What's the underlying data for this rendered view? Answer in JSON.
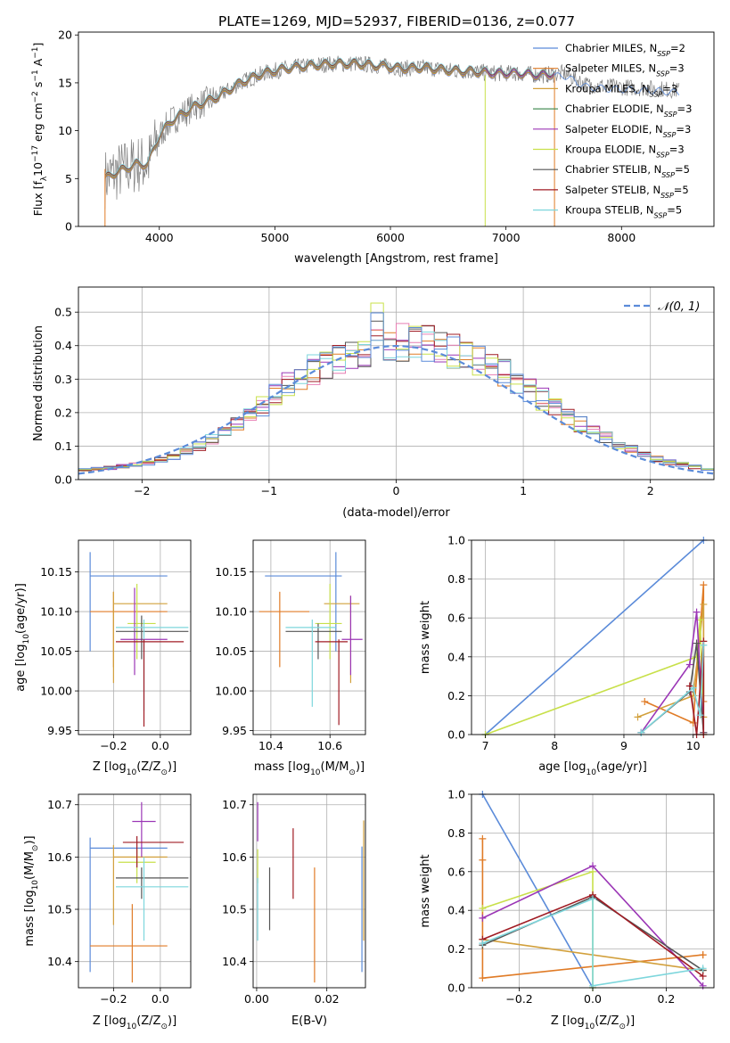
{
  "figure": {
    "title": "PLATE=1269, MJD=52937, FIBERID=0136, z=0.077"
  },
  "colors": {
    "series": [
      "#5b8bd9",
      "#e07b26",
      "#d2a03c",
      "#4a8f5a",
      "#9b36b6",
      "#c8e04a",
      "#555555",
      "#a01c24",
      "#7dd6dc"
    ],
    "resid_series": [
      "#e07b26",
      "#9b36b6",
      "#e77fb4",
      "#555555",
      "#a01c24",
      "#7dd6dc",
      "#c8e04a",
      "#5b8bd9"
    ],
    "normal": "#5b8bd9",
    "grid": "#b0b0b0"
  },
  "chart_data": [
    {
      "id": "spectrum",
      "type": "line",
      "xlabel": "wavelength [Angstrom, rest frame]",
      "ylabel": "Flux [f",
      "ylabel_parts": [
        "Flux [f",
        "λ",
        "10",
        "−17",
        " erg cm",
        "−2",
        " s",
        "−1",
        " A",
        "−1",
        "]"
      ],
      "xlim": [
        3300,
        8800
      ],
      "ylim": [
        0,
        20.3
      ],
      "xticks": [
        4000,
        5000,
        6000,
        7000,
        8000
      ],
      "yticks": [
        0,
        5,
        10,
        15,
        20
      ],
      "grid": false,
      "legend_position": "top-right",
      "series": [
        {
          "name": "Chabrier MILES",
          "sub": "SSP",
          "n": "2"
        },
        {
          "name": "Salpeter MILES",
          "sub": "SSP",
          "n": "3"
        },
        {
          "name": "Kroupa MILES",
          "sub": "SSP",
          "n": "3"
        },
        {
          "name": "Chabrier ELODIE",
          "sub": "SSP",
          "n": "3"
        },
        {
          "name": "Salpeter ELODIE",
          "sub": "SSP",
          "n": "3"
        },
        {
          "name": "Kroupa ELODIE",
          "sub": "SSP",
          "n": "3"
        },
        {
          "name": "Chabrier STELIB",
          "sub": "SSP",
          "n": "5"
        },
        {
          "name": "Salpeter STELIB",
          "sub": "SSP",
          "n": "5"
        },
        {
          "name": "Kroupa STELIB",
          "sub": "SSP",
          "n": "5"
        }
      ],
      "continuum_x": [
        3530,
        3600,
        3700,
        3800,
        3900,
        3950,
        4000,
        4100,
        4300,
        4500,
        4700,
        4900,
        5100,
        5300,
        5500,
        5700,
        5900,
        6100,
        6300,
        6500,
        6700,
        6900,
        7100,
        7300,
        7500,
        7700,
        7900,
        8100,
        8300,
        8500
      ],
      "continuum_y": [
        5,
        5.5,
        6,
        6.5,
        6.5,
        8,
        9.5,
        11,
        12.5,
        13.5,
        15,
        16,
        16.5,
        16.8,
        17,
        17,
        16.8,
        16.5,
        16.6,
        16.3,
        16.2,
        16,
        16,
        15.8,
        16,
        14.8,
        14.6,
        14.5,
        14.4,
        14.2
      ]
    },
    {
      "id": "residuals",
      "type": "step",
      "xlabel": "(data-model)/error",
      "ylabel": "Normed distribution",
      "xlim": [
        -2.5,
        2.5
      ],
      "ylim": [
        0,
        0.575
      ],
      "xticks": [
        -2,
        -1,
        0,
        1,
        2
      ],
      "xticklabels": [
        "−2",
        "−1",
        "0",
        "1",
        "2"
      ],
      "yticks": [
        0,
        0.1,
        0.2,
        0.3,
        0.4,
        0.5
      ],
      "yticklabels": [
        "0.0",
        "0.1",
        "0.2",
        "0.3",
        "0.4",
        "0.5"
      ],
      "grid": true,
      "legend_position": "top-right",
      "legend": "𝒩(0, 1)",
      "bin_edges": [
        -2.5,
        -2.4,
        -2.3,
        -2.2,
        -2.1,
        -2.0,
        -1.9,
        -1.8,
        -1.7,
        -1.6,
        -1.5,
        -1.4,
        -1.3,
        -1.2,
        -1.1,
        -1.0,
        -0.9,
        -0.8,
        -0.7,
        -0.6,
        -0.5,
        -0.4,
        -0.3,
        -0.2,
        -0.1,
        0.0,
        0.1,
        0.2,
        0.3,
        0.4,
        0.5,
        0.6,
        0.7,
        0.8,
        0.9,
        1.0,
        1.1,
        1.2,
        1.3,
        1.4,
        1.5,
        1.6,
        1.7,
        1.8,
        1.9,
        2.0,
        2.1,
        2.2,
        2.3,
        2.4,
        2.5
      ],
      "base_hist": [
        0.03,
        0.032,
        0.035,
        0.04,
        0.045,
        0.05,
        0.06,
        0.07,
        0.085,
        0.1,
        0.12,
        0.14,
        0.165,
        0.19,
        0.22,
        0.25,
        0.28,
        0.305,
        0.33,
        0.35,
        0.365,
        0.38,
        0.39,
        0.4,
        0.405,
        0.41,
        0.41,
        0.405,
        0.395,
        0.385,
        0.37,
        0.355,
        0.335,
        0.315,
        0.29,
        0.265,
        0.24,
        0.215,
        0.19,
        0.165,
        0.145,
        0.125,
        0.105,
        0.09,
        0.075,
        0.062,
        0.052,
        0.045,
        0.038,
        0.032
      ]
    },
    {
      "id": "age_vs_z",
      "type": "errorbar",
      "xlabel": "Z [log",
      "xlabel_parts": [
        "Z [log",
        "10",
        "(Z/Z",
        "⊙",
        ")]"
      ],
      "ylabel_parts": [
        "age  [log",
        "10",
        "(age/yr)]"
      ],
      "xlim": [
        -0.35,
        0.13
      ],
      "ylim": [
        9.945,
        10.19
      ],
      "xticks": [
        -0.2,
        0.0
      ],
      "xticklabels": [
        "−0.2",
        "0.0"
      ],
      "yticks": [
        9.95,
        10.0,
        10.05,
        10.1,
        10.15
      ],
      "yticklabels": [
        "9.95",
        "10.00",
        "10.05",
        "10.10",
        "10.15"
      ],
      "grid": true,
      "points": [
        {
          "x": -0.3,
          "y": 10.145,
          "xlo": -0.3,
          "xhi": 0.03,
          "ylo": 10.05,
          "yhi": 10.175,
          "c": 0
        },
        {
          "x": -0.2,
          "y": 10.1,
          "xlo": -0.3,
          "xhi": 0.03,
          "ylo": 10.03,
          "yhi": 10.125,
          "c": 1
        },
        {
          "x": -0.2,
          "y": 10.11,
          "xlo": -0.2,
          "xhi": 0.03,
          "ylo": 10.01,
          "yhi": 10.125,
          "c": 2
        },
        {
          "x": -0.1,
          "y": 10.085,
          "xlo": -0.14,
          "xhi": -0.02,
          "ylo": 10.04,
          "yhi": 10.135,
          "c": 5
        },
        {
          "x": -0.11,
          "y": 10.065,
          "xlo": -0.17,
          "xhi": 0.03,
          "ylo": 10.02,
          "yhi": 10.13,
          "c": 4
        },
        {
          "x": -0.08,
          "y": 10.075,
          "xlo": -0.19,
          "xhi": 0.12,
          "ylo": 10.04,
          "yhi": 10.095,
          "c": 6
        },
        {
          "x": -0.07,
          "y": 10.08,
          "xlo": -0.19,
          "xhi": 0.12,
          "ylo": 9.975,
          "yhi": 10.09,
          "c": 8
        },
        {
          "x": -0.07,
          "y": 10.062,
          "xlo": -0.19,
          "xhi": 0.1,
          "ylo": 9.955,
          "yhi": 10.065,
          "c": 7
        }
      ]
    },
    {
      "id": "age_vs_mass",
      "type": "errorbar",
      "xlabel_parts": [
        "mass [log",
        "10",
        "(M/M",
        "⊙",
        ")]"
      ],
      "xlim": [
        10.34,
        10.72
      ],
      "ylim": [
        9.945,
        10.19
      ],
      "xticks": [
        10.4,
        10.6
      ],
      "xticklabels": [
        "10.4",
        "10.6"
      ],
      "yticks": [
        9.95,
        10.0,
        10.05,
        10.1,
        10.15
      ],
      "yticklabels": [
        "9.95",
        "10.00",
        "10.05",
        "10.10",
        "10.15"
      ],
      "grid": true,
      "points": [
        {
          "x": 10.62,
          "y": 10.145,
          "xlo": 10.38,
          "xhi": 10.64,
          "ylo": 10.05,
          "yhi": 10.175,
          "c": 0
        },
        {
          "x": 10.43,
          "y": 10.1,
          "xlo": 10.36,
          "xhi": 10.53,
          "ylo": 10.03,
          "yhi": 10.125,
          "c": 1
        },
        {
          "x": 10.67,
          "y": 10.11,
          "xlo": 10.58,
          "xhi": 10.7,
          "ylo": 10.01,
          "yhi": 10.12,
          "c": 2
        },
        {
          "x": 10.6,
          "y": 10.085,
          "xlo": 10.55,
          "xhi": 10.64,
          "ylo": 10.04,
          "yhi": 10.135,
          "c": 5
        },
        {
          "x": 10.67,
          "y": 10.065,
          "xlo": 10.64,
          "xhi": 10.71,
          "ylo": 10.02,
          "yhi": 10.12,
          "c": 4
        },
        {
          "x": 10.56,
          "y": 10.075,
          "xlo": 10.45,
          "xhi": 10.64,
          "ylo": 10.04,
          "yhi": 10.085,
          "c": 6
        },
        {
          "x": 10.54,
          "y": 10.08,
          "xlo": 10.45,
          "xhi": 10.62,
          "ylo": 9.98,
          "yhi": 10.09,
          "c": 8
        },
        {
          "x": 10.63,
          "y": 10.062,
          "xlo": 10.55,
          "xhi": 10.66,
          "ylo": 9.957,
          "yhi": 10.065,
          "c": 7
        }
      ]
    },
    {
      "id": "massweight_vs_age",
      "type": "line",
      "xlabel_parts": [
        "age  [log",
        "10",
        "(age/yr)]"
      ],
      "ylabel": "mass weight",
      "xlim": [
        6.8,
        10.3
      ],
      "ylim": [
        0,
        1.0
      ],
      "xticks": [
        7,
        8,
        9,
        10
      ],
      "xticklabels": [
        "7",
        "8",
        "9",
        "10"
      ],
      "yticks": [
        0,
        0.2,
        0.4,
        0.6,
        0.8,
        1.0
      ],
      "yticklabels": [
        "0.0",
        "0.2",
        "0.4",
        "0.6",
        "0.8",
        "1.0"
      ],
      "grid": true,
      "series": [
        {
          "c": 0,
          "x": [
            7.0,
            10.15
          ],
          "y": [
            0.0,
            1.0
          ]
        },
        {
          "c": 1,
          "x": [
            9.3,
            10.0,
            10.15,
            10.15
          ],
          "y": [
            0.17,
            0.06,
            0.77,
            0.17
          ]
        },
        {
          "c": 2,
          "x": [
            9.2,
            10.0,
            10.15,
            10.15
          ],
          "y": [
            0.09,
            0.2,
            0.67,
            0.09
          ]
        },
        {
          "c": 5,
          "x": [
            7.0,
            10.05,
            10.1,
            10.15
          ],
          "y": [
            0.0,
            0.4,
            0.59,
            0.0
          ]
        },
        {
          "c": 4,
          "x": [
            9.25,
            9.95,
            10.05,
            10.15
          ],
          "y": [
            0.01,
            0.36,
            0.63,
            0.01
          ]
        },
        {
          "c": 6,
          "x": [
            9.25,
            9.95,
            10.05,
            10.15
          ],
          "y": [
            0.01,
            0.22,
            0.47,
            0.01
          ]
        },
        {
          "c": 7,
          "x": [
            9.95,
            10.05,
            10.15,
            10.15
          ],
          "y": [
            0.25,
            0.0,
            0.48,
            0.0
          ]
        },
        {
          "c": 8,
          "x": [
            9.25,
            10.0,
            10.1,
            10.15
          ],
          "y": [
            0.01,
            0.24,
            0.1,
            0.46
          ]
        }
      ]
    },
    {
      "id": "mass_vs_z",
      "type": "errorbar",
      "xlabel_parts": [
        "Z [log",
        "10",
        "(Z/Z",
        "⊙",
        ")]"
      ],
      "ylabel_parts": [
        "mass [log",
        "10",
        "(M/M",
        "⊙",
        ")]"
      ],
      "xlim": [
        -0.35,
        0.13
      ],
      "ylim": [
        10.35,
        10.72
      ],
      "xticks": [
        -0.2,
        0.0
      ],
      "xticklabels": [
        "−0.2",
        "0.0"
      ],
      "yticks": [
        10.4,
        10.5,
        10.6,
        10.7
      ],
      "yticklabels": [
        "10.4",
        "10.5",
        "10.6",
        "10.7"
      ],
      "grid": true,
      "points": [
        {
          "x": -0.3,
          "y": 10.617,
          "xlo": -0.3,
          "xhi": 0.03,
          "ylo": 10.38,
          "yhi": 10.637,
          "c": 0
        },
        {
          "x": -0.12,
          "y": 10.43,
          "xlo": -0.3,
          "xhi": 0.03,
          "ylo": 10.36,
          "yhi": 10.51,
          "c": 1
        },
        {
          "x": -0.2,
          "y": 10.6,
          "xlo": -0.2,
          "xhi": 0.03,
          "ylo": 10.47,
          "yhi": 10.623,
          "c": 2
        },
        {
          "x": -0.08,
          "y": 10.668,
          "xlo": -0.12,
          "xhi": -0.02,
          "ylo": 10.6,
          "yhi": 10.705,
          "c": 4
        },
        {
          "x": -0.1,
          "y": 10.59,
          "xlo": -0.18,
          "xhi": -0.02,
          "ylo": 10.55,
          "yhi": 10.615,
          "c": 5
        },
        {
          "x": -0.08,
          "y": 10.56,
          "xlo": -0.19,
          "xhi": 0.12,
          "ylo": 10.52,
          "yhi": 10.58,
          "c": 6
        },
        {
          "x": -0.07,
          "y": 10.543,
          "xlo": -0.19,
          "xhi": 0.12,
          "ylo": 10.44,
          "yhi": 10.6,
          "c": 8
        },
        {
          "x": -0.1,
          "y": 10.628,
          "xlo": -0.16,
          "xhi": 0.1,
          "ylo": 10.58,
          "yhi": 10.64,
          "c": 7
        }
      ]
    },
    {
      "id": "mass_vs_ebv",
      "type": "errorbar",
      "xlabel": "E(B-V)",
      "xlim": [
        -0.001,
        0.031
      ],
      "ylim": [
        10.35,
        10.72
      ],
      "xticks": [
        0.0,
        0.02
      ],
      "xticklabels": [
        "0.00",
        "0.02"
      ],
      "yticks": [
        10.4,
        10.5,
        10.6,
        10.7
      ],
      "yticklabels": [
        "10.4",
        "10.5",
        "10.6",
        "10.7"
      ],
      "grid": true,
      "points": [
        {
          "x": 0.03,
          "y": 10.5,
          "ylo": 10.38,
          "yhi": 10.62,
          "c": 0
        },
        {
          "x": 0.0165,
          "y": 10.47,
          "ylo": 10.36,
          "yhi": 10.58,
          "c": 1
        },
        {
          "x": 0.0305,
          "y": 10.55,
          "ylo": 10.44,
          "yhi": 10.67,
          "c": 2
        },
        {
          "x": 0.0003,
          "y": 10.67,
          "ylo": 10.63,
          "yhi": 10.705,
          "c": 4
        },
        {
          "x": 0.0003,
          "y": 10.58,
          "ylo": 10.55,
          "yhi": 10.615,
          "c": 5
        },
        {
          "x": 0.0037,
          "y": 10.52,
          "ylo": 10.46,
          "yhi": 10.58,
          "c": 6
        },
        {
          "x": 0.0003,
          "y": 10.5,
          "ylo": 10.44,
          "yhi": 10.56,
          "c": 8
        },
        {
          "x": 0.0104,
          "y": 10.59,
          "ylo": 10.52,
          "yhi": 10.655,
          "c": 7
        }
      ]
    },
    {
      "id": "massweight_vs_z",
      "type": "line",
      "xlabel_parts": [
        "Z [log",
        "10",
        "(Z/Z",
        "⊙",
        ")]"
      ],
      "ylabel": "mass weight",
      "xlim": [
        -0.33,
        0.33
      ],
      "ylim": [
        0,
        1.0
      ],
      "xticks": [
        -0.2,
        0.0,
        0.2
      ],
      "xticklabels": [
        "−0.2",
        "0.0",
        "0.2"
      ],
      "yticks": [
        0,
        0.2,
        0.4,
        0.6,
        0.8,
        1.0
      ],
      "yticklabels": [
        "0.0",
        "0.2",
        "0.4",
        "0.6",
        "0.8",
        "1.0"
      ],
      "grid": true,
      "series": [
        {
          "c": 0,
          "x": [
            -0.3,
            0.0
          ],
          "y": [
            1.0,
            0.0
          ]
        },
        {
          "c": 1,
          "x": [
            -0.3,
            -0.3,
            -0.3,
            0.3,
            0.3
          ],
          "y": [
            0.77,
            0.66,
            0.05,
            0.17,
            0.17
          ]
        },
        {
          "c": 2,
          "x": [
            -0.3,
            0.3,
            0.3
          ],
          "y": [
            0.25,
            0.09,
            0.09
          ]
        },
        {
          "c": 5,
          "x": [
            -0.3,
            0.0,
            0.0
          ],
          "y": [
            0.41,
            0.6,
            0.0
          ]
        },
        {
          "c": 4,
          "x": [
            -0.3,
            0.0,
            0.3
          ],
          "y": [
            0.36,
            0.63,
            0.01
          ]
        },
        {
          "c": 6,
          "x": [
            -0.3,
            0.0,
            0.3
          ],
          "y": [
            0.22,
            0.47,
            0.09
          ]
        },
        {
          "c": 7,
          "x": [
            -0.3,
            0.0,
            0.3
          ],
          "y": [
            0.25,
            0.48,
            0.06
          ]
        },
        {
          "c": 8,
          "x": [
            -0.3,
            0.0,
            0.0,
            0.3
          ],
          "y": [
            0.23,
            0.46,
            0.01,
            0.1
          ]
        }
      ]
    }
  ]
}
